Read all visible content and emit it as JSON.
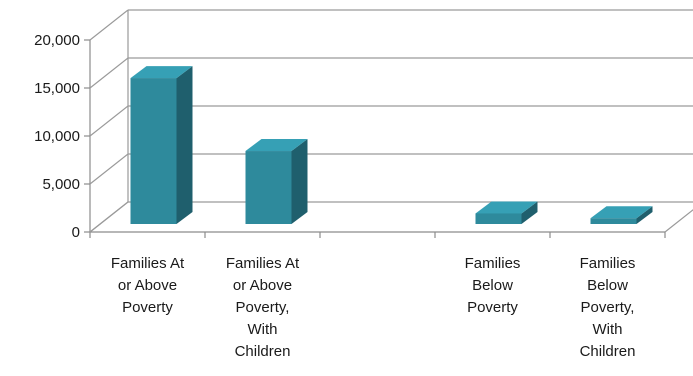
{
  "chart_data": {
    "type": "bar",
    "title": "",
    "xlabel": "",
    "ylabel": "",
    "categories": [
      "Families At or Above Poverty",
      "Families At or Above Poverty, With Children",
      "",
      "Families Below Poverty",
      "Families Below Poverty, With Children"
    ],
    "category_label_lines": [
      [
        "Families At",
        "or Above",
        "Poverty"
      ],
      [
        "Families At",
        "or Above",
        "Poverty,",
        "With",
        "Children"
      ],
      [],
      [
        "Families",
        "Below",
        "Poverty"
      ],
      [
        "Families",
        "Below",
        "Poverty,",
        "With",
        "Children"
      ]
    ],
    "values": [
      15200,
      7600,
      null,
      1100,
      600
    ],
    "ylim": [
      0,
      20000
    ],
    "yticks": [
      0,
      5000,
      10000,
      15000,
      20000
    ],
    "ytick_labels": [
      "0",
      "5,000",
      "10,000",
      "15,000",
      "20,000"
    ],
    "grid": true,
    "legend": "none",
    "style": "3d-column",
    "colors": {
      "bar_front": "#2e8a9c",
      "bar_top": "#36a0b5",
      "bar_side": "#1f5f6d",
      "grid": "#9a9a9a",
      "axis": "#8c8c8c"
    }
  }
}
